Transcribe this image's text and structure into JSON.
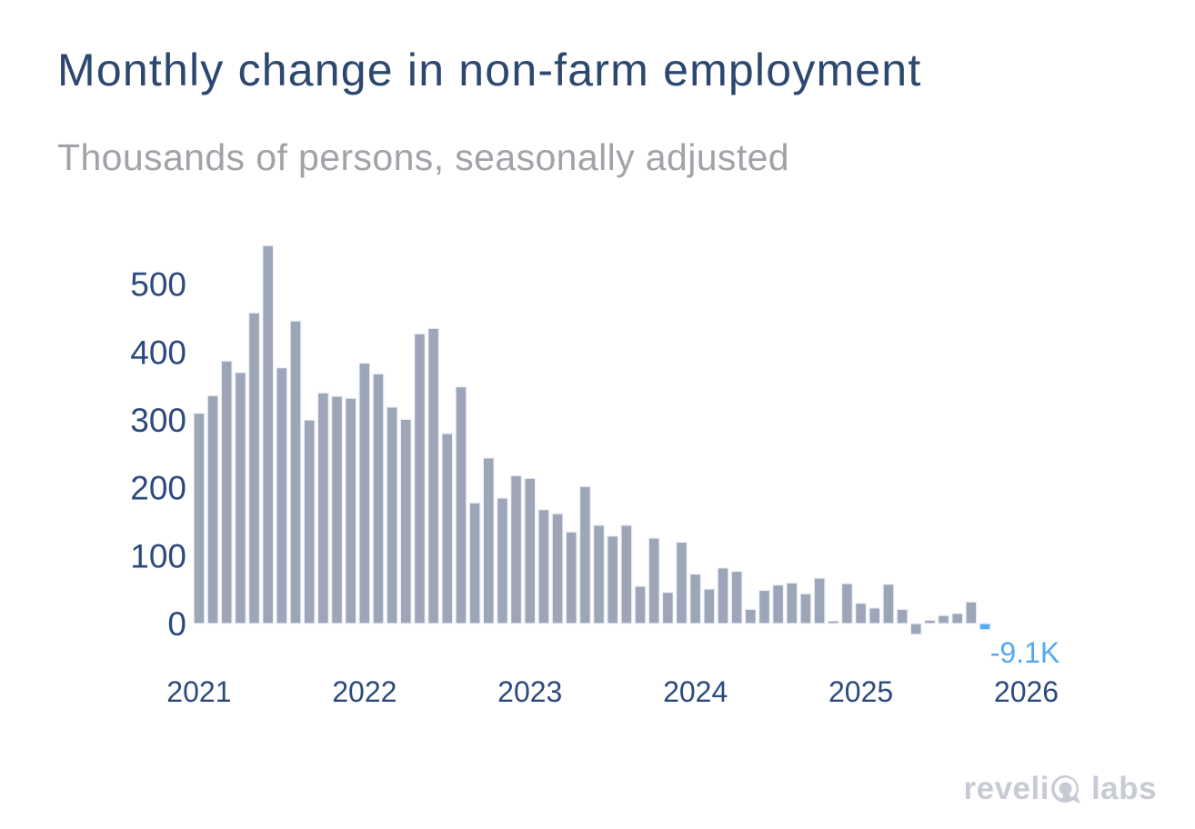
{
  "header": {
    "title": "Monthly change in non-farm employment",
    "subtitle": "Thousands of persons, seasonally adjusted"
  },
  "branding": {
    "logo_part1": "reveli",
    "logo_mark_icon": "revelio-o-mark",
    "logo_part2": "labs",
    "logo_full_name": "revelio labs"
  },
  "colors": {
    "title_navy": "#2c4770",
    "subtitle_gray": "#a2a2a8",
    "axis_navy": "#2d4a7e",
    "bar_gray": "#9da5b8",
    "bar_stroke": "#eff2f7",
    "highlight_blue": "#55a9f2",
    "logo_gray": "#c8cbd4",
    "background": "#ffffff"
  },
  "chart_data": {
    "type": "bar",
    "title": "Monthly change in non-farm employment",
    "subtitle": "Thousands of persons, seasonally adjusted",
    "ylabel": "Thousands of persons",
    "xlabel": "",
    "grid": false,
    "legend": false,
    "ylim": [
      -50,
      575
    ],
    "yticks": [
      0,
      100,
      200,
      300,
      400,
      500
    ],
    "xticks": [
      "2021",
      "2022",
      "2023",
      "2024",
      "2025",
      "2026"
    ],
    "x": [
      "Jan 2021",
      "Feb 2021",
      "Mar 2021",
      "Apr 2021",
      "May 2021",
      "Jun 2021",
      "Jul 2021",
      "Aug 2021",
      "Sep 2021",
      "Oct 2021",
      "Nov 2021",
      "Dec 2021",
      "Jan 2022",
      "Feb 2022",
      "Mar 2022",
      "Apr 2022",
      "May 2022",
      "Jun 2022",
      "Jul 2022",
      "Aug 2022",
      "Sep 2022",
      "Oct 2022",
      "Nov 2022",
      "Dec 2022",
      "Jan 2023",
      "Feb 2023",
      "Mar 2023",
      "Apr 2023",
      "May 2023",
      "Jun 2023",
      "Jul 2023",
      "Aug 2023",
      "Sep 2023",
      "Oct 2023",
      "Nov 2023",
      "Dec 2023",
      "Jan 2024",
      "Feb 2024",
      "Mar 2024",
      "Apr 2024",
      "May 2024",
      "Jun 2024",
      "Jul 2024",
      "Aug 2024",
      "Sep 2024",
      "Oct 2024",
      "Nov 2024",
      "Dec 2024",
      "Jan 2025",
      "Feb 2025",
      "Mar 2025",
      "Apr 2025",
      "May 2025",
      "Jun 2025",
      "Jul 2025",
      "Aug 2025",
      "Sep 2025",
      "Oct 2025"
    ],
    "values": [
      310,
      336,
      387,
      370,
      458,
      557,
      377,
      446,
      300,
      340,
      335,
      332,
      384,
      368,
      319,
      301,
      427,
      435,
      280,
      349,
      178,
      244,
      185,
      218,
      214,
      168,
      162,
      135,
      202,
      145,
      129,
      145,
      55,
      126,
      46,
      120,
      73,
      51,
      82,
      77,
      21,
      49,
      57,
      60,
      44,
      67,
      4,
      59,
      30,
      23,
      58,
      21,
      -16,
      5,
      12,
      15,
      32,
      -9.1
    ],
    "highlight_index": 57,
    "annotation": {
      "label": "-9.1K",
      "value": -9.1,
      "month": "Oct 2025"
    }
  }
}
